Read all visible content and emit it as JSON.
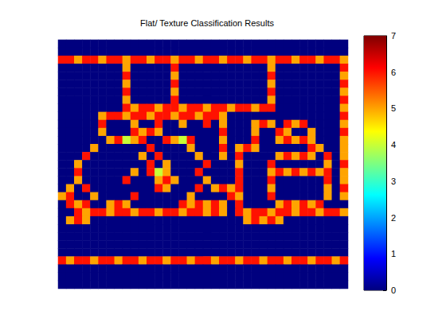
{
  "chart_data": {
    "type": "heatmap",
    "title": "Flat/ Texture Classification Results",
    "cells": [
      [
        0,
        0,
        0,
        0,
        0,
        0,
        0,
        0,
        0,
        0,
        0,
        0,
        0,
        0,
        0,
        0,
        0,
        0,
        0,
        0,
        0,
        0,
        0,
        0,
        0,
        0,
        0,
        0,
        0,
        0,
        0,
        0,
        0,
        0,
        0,
        0
      ],
      [
        0,
        0,
        0,
        0,
        0,
        0,
        0,
        0,
        0,
        0,
        0,
        0,
        0,
        0,
        0,
        0,
        0,
        0,
        0,
        0,
        0,
        0,
        0,
        0,
        0,
        0,
        0,
        0,
        0,
        0,
        0,
        0,
        0,
        0,
        0,
        0
      ],
      [
        6,
        6,
        5,
        6,
        6,
        5,
        6,
        6,
        5,
        6,
        6,
        5,
        6,
        6,
        5,
        6,
        6,
        5,
        6,
        6,
        5,
        6,
        6,
        5,
        6,
        6,
        5,
        6,
        6,
        5,
        6,
        6,
        5,
        6,
        6,
        5
      ],
      [
        0,
        0,
        0,
        0,
        0,
        0,
        0,
        0,
        5,
        0,
        0,
        0,
        0,
        0,
        6,
        0,
        0,
        0,
        0,
        0,
        0,
        0,
        0,
        0,
        0,
        0,
        5,
        0,
        0,
        0,
        0,
        0,
        0,
        0,
        0,
        6
      ],
      [
        0,
        0,
        0,
        0,
        0,
        0,
        0,
        0,
        6,
        0,
        0,
        0,
        0,
        0,
        5,
        0,
        0,
        0,
        0,
        0,
        0,
        0,
        0,
        0,
        0,
        0,
        6,
        0,
        0,
        0,
        0,
        0,
        0,
        0,
        0,
        5
      ],
      [
        0,
        0,
        0,
        0,
        0,
        0,
        0,
        0,
        5,
        0,
        0,
        0,
        0,
        0,
        6,
        0,
        0,
        0,
        0,
        0,
        0,
        0,
        0,
        0,
        0,
        0,
        5,
        0,
        0,
        0,
        0,
        0,
        0,
        0,
        0,
        6
      ],
      [
        0,
        0,
        0,
        0,
        0,
        0,
        0,
        0,
        6,
        0,
        0,
        0,
        0,
        0,
        5,
        0,
        0,
        0,
        0,
        0,
        0,
        0,
        0,
        0,
        0,
        0,
        6,
        0,
        0,
        0,
        0,
        0,
        0,
        0,
        0,
        5
      ],
      [
        0,
        0,
        0,
        0,
        0,
        0,
        0,
        0,
        5,
        0,
        0,
        0,
        0,
        0,
        6,
        0,
        0,
        0,
        0,
        0,
        0,
        0,
        0,
        0,
        0,
        0,
        5,
        0,
        0,
        0,
        0,
        0,
        0,
        0,
        0,
        6
      ],
      [
        0,
        0,
        0,
        0,
        0,
        0,
        0,
        0,
        6,
        5,
        6,
        6,
        5,
        6,
        6,
        5,
        6,
        6,
        5,
        6,
        6,
        5,
        6,
        6,
        5,
        6,
        6,
        0,
        0,
        0,
        0,
        0,
        0,
        0,
        0,
        5
      ],
      [
        0,
        0,
        0,
        0,
        0,
        5,
        6,
        6,
        5,
        6,
        6,
        5,
        6,
        6,
        5,
        6,
        6,
        5,
        6,
        6,
        5,
        0,
        0,
        0,
        0,
        0,
        0,
        0,
        0,
        0,
        0,
        0,
        0,
        0,
        0,
        6
      ],
      [
        0,
        0,
        0,
        0,
        0,
        6,
        0,
        0,
        0,
        5,
        0,
        0,
        6,
        0,
        0,
        5,
        0,
        0,
        6,
        0,
        5,
        0,
        0,
        0,
        5,
        6,
        5,
        0,
        6,
        5,
        6,
        0,
        0,
        0,
        0,
        5
      ],
      [
        0,
        0,
        0,
        0,
        0,
        5,
        0,
        0,
        0,
        6,
        5,
        6,
        5,
        0,
        0,
        0,
        0,
        0,
        0,
        0,
        6,
        0,
        0,
        0,
        5,
        0,
        0,
        6,
        5,
        0,
        0,
        5,
        0,
        0,
        0,
        6
      ],
      [
        0,
        0,
        0,
        0,
        0,
        0,
        5,
        6,
        4,
        5,
        6,
        0,
        0,
        6,
        5,
        4,
        6,
        0,
        0,
        0,
        5,
        0,
        0,
        0,
        6,
        0,
        0,
        5,
        6,
        5,
        6,
        5,
        0,
        0,
        0,
        5
      ],
      [
        0,
        0,
        0,
        0,
        5,
        0,
        0,
        0,
        0,
        0,
        0,
        6,
        0,
        0,
        0,
        0,
        5,
        0,
        0,
        0,
        6,
        0,
        5,
        6,
        5,
        0,
        0,
        0,
        0,
        0,
        0,
        6,
        5,
        0,
        0,
        5
      ],
      [
        0,
        0,
        0,
        6,
        0,
        0,
        0,
        0,
        0,
        0,
        5,
        0,
        6,
        0,
        0,
        0,
        0,
        5,
        0,
        0,
        5,
        0,
        6,
        0,
        0,
        0,
        0,
        5,
        6,
        5,
        6,
        5,
        0,
        6,
        0,
        5
      ],
      [
        0,
        0,
        5,
        0,
        0,
        0,
        0,
        0,
        0,
        0,
        0,
        6,
        0,
        5,
        0,
        0,
        0,
        0,
        6,
        0,
        0,
        0,
        5,
        0,
        0,
        0,
        6,
        0,
        0,
        0,
        0,
        0,
        0,
        5,
        0,
        6
      ],
      [
        0,
        0,
        6,
        0,
        0,
        0,
        0,
        0,
        0,
        5,
        0,
        6,
        4,
        5,
        0,
        0,
        0,
        6,
        0,
        0,
        0,
        0,
        6,
        0,
        0,
        0,
        5,
        6,
        5,
        6,
        5,
        6,
        5,
        6,
        0,
        5
      ],
      [
        0,
        0,
        5,
        0,
        0,
        0,
        0,
        0,
        6,
        0,
        0,
        0,
        5,
        6,
        5,
        0,
        0,
        0,
        5,
        0,
        0,
        0,
        6,
        0,
        0,
        0,
        6,
        0,
        0,
        0,
        0,
        0,
        0,
        6,
        0,
        5
      ],
      [
        0,
        5,
        0,
        6,
        0,
        0,
        0,
        0,
        0,
        0,
        0,
        0,
        6,
        5,
        0,
        0,
        0,
        6,
        0,
        5,
        6,
        5,
        6,
        0,
        0,
        0,
        5,
        0,
        0,
        0,
        0,
        0,
        0,
        5,
        0,
        6
      ],
      [
        5,
        6,
        0,
        0,
        5,
        0,
        0,
        0,
        0,
        6,
        0,
        0,
        0,
        0,
        0,
        0,
        5,
        0,
        0,
        0,
        0,
        6,
        5,
        0,
        0,
        0,
        6,
        0,
        0,
        0,
        0,
        0,
        0,
        5,
        0,
        5
      ],
      [
        0,
        6,
        5,
        6,
        0,
        0,
        5,
        6,
        5,
        0,
        0,
        0,
        0,
        0,
        0,
        6,
        5,
        6,
        5,
        6,
        5,
        0,
        6,
        0,
        0,
        0,
        0,
        5,
        6,
        5,
        6,
        5,
        6,
        0,
        0,
        0
      ],
      [
        0,
        0,
        6,
        5,
        6,
        6,
        5,
        6,
        6,
        5,
        6,
        6,
        5,
        6,
        6,
        5,
        6,
        6,
        5,
        6,
        5,
        0,
        6,
        5,
        6,
        6,
        5,
        6,
        6,
        5,
        6,
        6,
        5,
        6,
        6,
        5
      ],
      [
        0,
        5,
        6,
        5,
        0,
        0,
        0,
        0,
        0,
        0,
        0,
        0,
        0,
        0,
        0,
        0,
        0,
        0,
        0,
        0,
        0,
        0,
        0,
        5,
        6,
        5,
        6,
        5,
        0,
        0,
        0,
        0,
        0,
        0,
        0,
        0
      ],
      [
        0,
        0,
        0,
        0,
        0,
        0,
        0,
        0,
        0,
        0,
        0,
        0,
        0,
        0,
        0,
        0,
        0,
        0,
        0,
        0,
        0,
        0,
        0,
        0,
        0,
        0,
        0,
        0,
        0,
        0,
        0,
        0,
        0,
        0,
        0,
        0
      ],
      [
        0,
        0,
        0,
        0,
        0,
        0,
        0,
        0,
        0,
        0,
        0,
        0,
        0,
        0,
        0,
        0,
        0,
        0,
        0,
        0,
        0,
        0,
        0,
        0,
        0,
        0,
        0,
        0,
        0,
        0,
        0,
        0,
        0,
        0,
        0,
        0
      ],
      [
        0,
        0,
        0,
        0,
        0,
        0,
        0,
        0,
        0,
        0,
        0,
        0,
        0,
        0,
        0,
        0,
        0,
        0,
        0,
        0,
        0,
        0,
        0,
        0,
        0,
        0,
        0,
        0,
        0,
        0,
        0,
        0,
        0,
        0,
        0,
        0
      ],
      [
        0,
        0,
        0,
        0,
        0,
        0,
        0,
        0,
        0,
        0,
        0,
        0,
        0,
        0,
        0,
        0,
        0,
        0,
        0,
        0,
        0,
        0,
        0,
        0,
        0,
        0,
        0,
        0,
        0,
        0,
        0,
        0,
        0,
        0,
        0,
        0
      ],
      [
        6,
        5,
        6,
        6,
        5,
        6,
        6,
        5,
        6,
        6,
        5,
        6,
        6,
        5,
        6,
        6,
        5,
        6,
        6,
        5,
        6,
        6,
        5,
        6,
        6,
        5,
        6,
        6,
        5,
        6,
        6,
        5,
        6,
        6,
        5,
        6
      ],
      [
        0,
        0,
        0,
        0,
        0,
        0,
        0,
        0,
        0,
        0,
        0,
        0,
        0,
        0,
        0,
        0,
        0,
        0,
        0,
        0,
        0,
        0,
        0,
        0,
        0,
        0,
        0,
        0,
        0,
        0,
        0,
        0,
        0,
        0,
        0,
        0
      ],
      [
        0,
        0,
        0,
        0,
        0,
        0,
        0,
        0,
        0,
        0,
        0,
        0,
        0,
        0,
        0,
        0,
        0,
        0,
        0,
        0,
        0,
        0,
        0,
        0,
        0,
        0,
        0,
        0,
        0,
        0,
        0,
        0,
        0,
        0,
        0,
        0
      ],
      [
        0,
        0,
        0,
        0,
        0,
        0,
        0,
        0,
        0,
        0,
        0,
        0,
        0,
        0,
        0,
        0,
        0,
        0,
        0,
        0,
        0,
        0,
        0,
        0,
        0,
        0,
        0,
        0,
        0,
        0,
        0,
        0,
        0,
        0,
        0,
        0
      ]
    ],
    "color_range": [
      0,
      7
    ],
    "color_ticks": [
      0,
      1,
      2,
      3,
      4,
      5,
      6,
      7
    ],
    "tick_labels": false
  }
}
